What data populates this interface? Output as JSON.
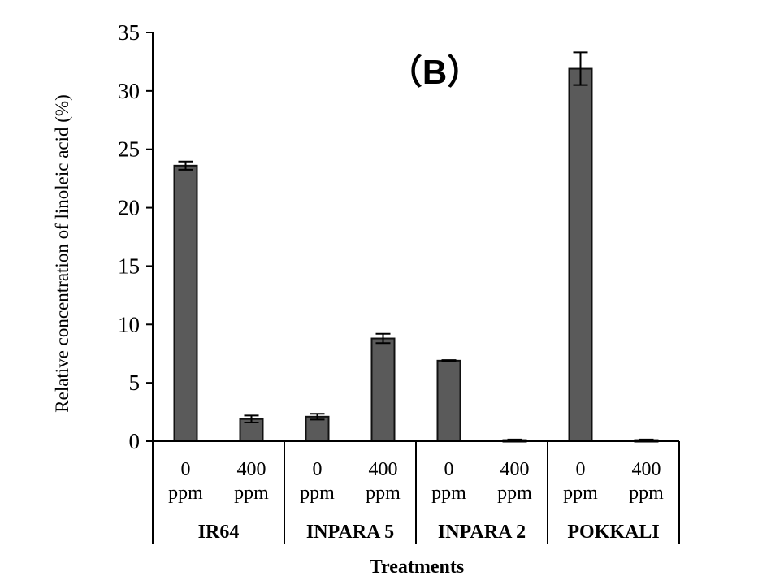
{
  "chart_data": {
    "type": "bar",
    "panel_label": "（B）",
    "ylabel": "Relative concentration of linoleic acid (%)",
    "xlabel": "Treatments",
    "ylim": [
      0,
      35
    ],
    "yticks": [
      0,
      5,
      10,
      15,
      20,
      25,
      30,
      35
    ],
    "groups": [
      {
        "name": "IR64",
        "bars": [
          {
            "dose": "0",
            "unit": "ppm",
            "value": 23.6,
            "error": 0.35
          },
          {
            "dose": "400",
            "unit": "ppm",
            "value": 1.9,
            "error": 0.3
          }
        ]
      },
      {
        "name": "INPARA 5",
        "bars": [
          {
            "dose": "0",
            "unit": "ppm",
            "value": 2.1,
            "error": 0.25
          },
          {
            "dose": "400",
            "unit": "ppm",
            "value": 8.8,
            "error": 0.4
          }
        ]
      },
      {
        "name": "INPARA 2",
        "bars": [
          {
            "dose": "0",
            "unit": "ppm",
            "value": 6.9,
            "error": 0.05
          },
          {
            "dose": "400",
            "unit": "ppm",
            "value": 0.1,
            "error": 0.05
          }
        ]
      },
      {
        "name": "POKKALI",
        "bars": [
          {
            "dose": "0",
            "unit": "ppm",
            "value": 31.9,
            "error": 1.4
          },
          {
            "dose": "400",
            "unit": "ppm",
            "value": 0.1,
            "error": 0.05
          }
        ]
      }
    ],
    "bar_color": "#5a5a5a"
  }
}
